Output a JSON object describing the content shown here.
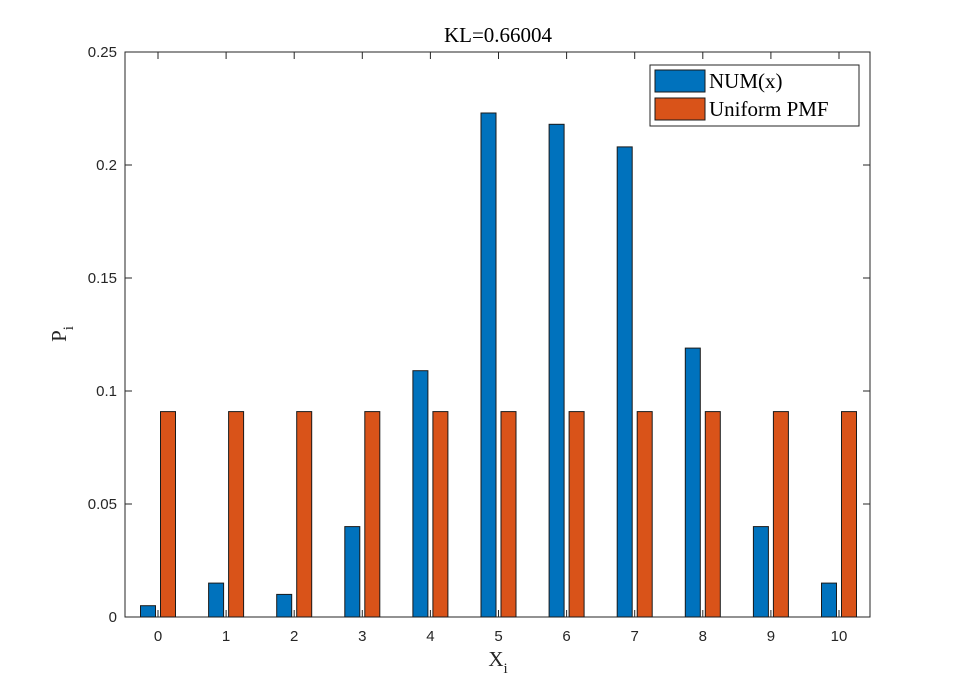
{
  "chart_data": {
    "type": "bar",
    "title": "KL=0.66004",
    "xlabel": "X",
    "xlabel_subscript": "i",
    "ylabel": "P",
    "ylabel_subscript": "i",
    "categories": [
      "0",
      "1",
      "2",
      "3",
      "4",
      "5",
      "6",
      "7",
      "8",
      "9",
      "10"
    ],
    "series": [
      {
        "name": "NUM(x)",
        "color": "#0072BD",
        "values": [
          0.005,
          0.015,
          0.01,
          0.04,
          0.109,
          0.223,
          0.218,
          0.208,
          0.119,
          0.04,
          0.015
        ]
      },
      {
        "name": "Uniform PMF",
        "color": "#D95319",
        "values": [
          0.0909,
          0.0909,
          0.0909,
          0.0909,
          0.0909,
          0.0909,
          0.0909,
          0.0909,
          0.0909,
          0.0909,
          0.0909
        ]
      }
    ],
    "ylim": [
      0,
      0.25
    ],
    "yticks": [
      "0",
      "0.05",
      "0.1",
      "0.15",
      "0.2",
      "0.25"
    ],
    "grid": false,
    "legend_position": "top-right"
  }
}
